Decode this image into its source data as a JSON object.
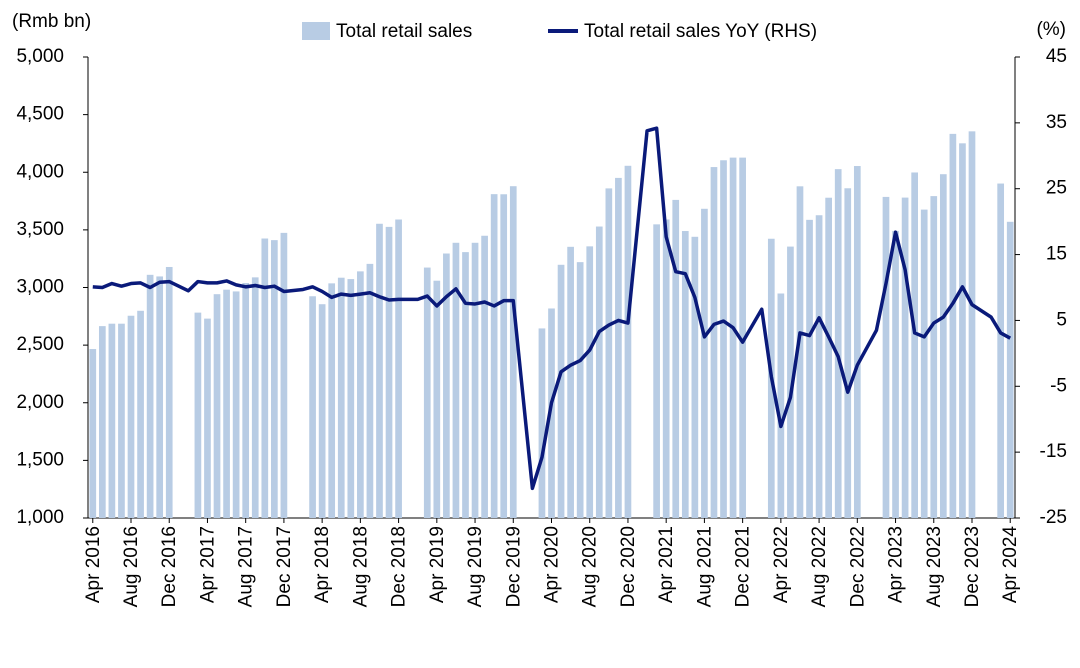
{
  "chart_data": {
    "type": "bar_line",
    "y_label": "(Rmb bn)",
    "y2_label": "(%)",
    "ylim": [
      1000,
      5000
    ],
    "yticks": [
      {
        "value": 1000,
        "label": "1,000"
      },
      {
        "value": 1500,
        "label": "1,500"
      },
      {
        "value": 2000,
        "label": "2,000"
      },
      {
        "value": 2500,
        "label": "2,500"
      },
      {
        "value": 3000,
        "label": "3,000"
      },
      {
        "value": 3500,
        "label": "3,500"
      },
      {
        "value": 4000,
        "label": "4,000"
      },
      {
        "value": 4500,
        "label": "4,500"
      },
      {
        "value": 5000,
        "label": "5,000"
      }
    ],
    "y2lim": [
      -25,
      45
    ],
    "y2ticks": [
      -25,
      -15,
      -5,
      5,
      15,
      25,
      35,
      45
    ],
    "negative_tick_color": "#e00000",
    "xticks": [
      "Apr 2016",
      "Aug 2016",
      "Dec 2016",
      "Apr 2017",
      "Aug 2017",
      "Dec 2017",
      "Apr 2018",
      "Aug 2018",
      "Dec 2018",
      "Apr 2019",
      "Aug 2019",
      "Dec 2019",
      "Apr 2020",
      "Aug 2020",
      "Dec 2020",
      "Apr 2021",
      "Aug 2021",
      "Dec 2021",
      "Apr 2022",
      "Aug 2022",
      "Dec 2022",
      "Apr 2023",
      "Aug 2023",
      "Dec 2023",
      "Apr 2024"
    ],
    "series": [
      {
        "name": "Total retail sales",
        "type": "bar",
        "color": "#b8cce4",
        "x": [
          "Apr 2016",
          "May 2016",
          "Jun 2016",
          "Jul 2016",
          "Aug 2016",
          "Sep 2016",
          "Oct 2016",
          "Nov 2016",
          "Dec 2016",
          "Mar 2017",
          "Apr 2017",
          "May 2017",
          "Jun 2017",
          "Jul 2017",
          "Aug 2017",
          "Sep 2017",
          "Oct 2017",
          "Nov 2017",
          "Dec 2017",
          "Mar 2018",
          "Apr 2018",
          "May 2018",
          "Jun 2018",
          "Jul 2018",
          "Aug 2018",
          "Sep 2018",
          "Oct 2018",
          "Nov 2018",
          "Dec 2018",
          "Mar 2019",
          "Apr 2019",
          "May 2019",
          "Jun 2019",
          "Jul 2019",
          "Aug 2019",
          "Sep 2019",
          "Oct 2019",
          "Nov 2019",
          "Dec 2019",
          "Mar 2020",
          "Apr 2020",
          "May 2020",
          "Jun 2020",
          "Jul 2020",
          "Aug 2020",
          "Sep 2020",
          "Oct 2020",
          "Nov 2020",
          "Dec 2020",
          "Mar 2021",
          "Apr 2021",
          "May 2021",
          "Jun 2021",
          "Jul 2021",
          "Aug 2021",
          "Sep 2021",
          "Oct 2021",
          "Nov 2021",
          "Dec 2021",
          "Mar 2022",
          "Apr 2022",
          "May 2022",
          "Jun 2022",
          "Jul 2022",
          "Aug 2022",
          "Sep 2022",
          "Oct 2022",
          "Nov 2022",
          "Dec 2022",
          "Mar 2023",
          "Apr 2023",
          "May 2023",
          "Jun 2023",
          "Jul 2023",
          "Aug 2023",
          "Sep 2023",
          "Oct 2023",
          "Nov 2023",
          "Dec 2023",
          "Mar 2024",
          "Apr 2024"
        ],
        "values": [
          2466,
          2665,
          2686,
          2686,
          2755,
          2798,
          3110,
          3096,
          3178,
          2782,
          2730,
          2942,
          2981,
          2966,
          3039,
          3088,
          3425,
          3411,
          3474,
          2924,
          2855,
          3036,
          3085,
          3073,
          3140,
          3205,
          3553,
          3526,
          3590,
          3173,
          3059,
          3295,
          3388,
          3307,
          3388,
          3449,
          3810,
          3809,
          3879,
          2645,
          2818,
          3197,
          3353,
          3220,
          3357,
          3529,
          3860,
          3951,
          4056,
          3548,
          3590,
          3760,
          3490,
          3440,
          3683,
          4045,
          4104,
          4127,
          4127,
          3423,
          2948,
          3355,
          3878,
          3587,
          3627,
          3779,
          4027,
          3861,
          4054,
          3786,
          3491,
          3780,
          3998,
          3676,
          3793,
          3983,
          4333,
          4251,
          4355,
          3902,
          3570
        ]
      },
      {
        "name": "Total retail sales YoY (RHS)",
        "type": "line",
        "axis": "y2",
        "color": "#0a1a7a",
        "x": [
          "Apr 2016",
          "May 2016",
          "Jun 2016",
          "Jul 2016",
          "Aug 2016",
          "Sep 2016",
          "Oct 2016",
          "Nov 2016",
          "Dec 2016",
          "Feb 2017",
          "Mar 2017",
          "Apr 2017",
          "May 2017",
          "Jun 2017",
          "Jul 2017",
          "Aug 2017",
          "Sep 2017",
          "Oct 2017",
          "Nov 2017",
          "Dec 2017",
          "Feb 2018",
          "Mar 2018",
          "Apr 2018",
          "May 2018",
          "Jun 2018",
          "Jul 2018",
          "Aug 2018",
          "Sep 2018",
          "Oct 2018",
          "Nov 2018",
          "Dec 2018",
          "Feb 2019",
          "Mar 2019",
          "Apr 2019",
          "May 2019",
          "Jun 2019",
          "Jul 2019",
          "Aug 2019",
          "Sep 2019",
          "Oct 2019",
          "Nov 2019",
          "Dec 2019",
          "Feb 2020",
          "Mar 2020",
          "Apr 2020",
          "May 2020",
          "Jun 2020",
          "Jul 2020",
          "Aug 2020",
          "Sep 2020",
          "Oct 2020",
          "Nov 2020",
          "Dec 2020",
          "Feb 2021",
          "Mar 2021",
          "Apr 2021",
          "May 2021",
          "Jun 2021",
          "Jul 2021",
          "Aug 2021",
          "Sep 2021",
          "Oct 2021",
          "Nov 2021",
          "Dec 2021",
          "Feb 2022",
          "Mar 2022",
          "Apr 2022",
          "May 2022",
          "Jun 2022",
          "Jul 2022",
          "Aug 2022",
          "Sep 2022",
          "Oct 2022",
          "Nov 2022",
          "Dec 2022",
          "Feb 2023",
          "Mar 2023",
          "Apr 2023",
          "May 2023",
          "Jun 2023",
          "Jul 2023",
          "Aug 2023",
          "Sep 2023",
          "Oct 2023",
          "Nov 2023",
          "Dec 2023",
          "Feb 2024",
          "Mar 2024",
          "Apr 2024"
        ],
        "values": [
          10.1,
          10.0,
          10.6,
          10.2,
          10.6,
          10.7,
          10.0,
          10.8,
          10.9,
          9.5,
          10.9,
          10.7,
          10.7,
          11.0,
          10.4,
          10.1,
          10.3,
          10.0,
          10.2,
          9.4,
          9.7,
          10.1,
          9.4,
          8.5,
          9.0,
          8.8,
          9.0,
          9.2,
          8.6,
          8.1,
          8.2,
          8.2,
          8.7,
          7.2,
          8.6,
          9.8,
          7.6,
          7.5,
          7.8,
          7.2,
          8.0,
          8.0,
          -20.5,
          -15.8,
          -7.5,
          -2.8,
          -1.8,
          -1.1,
          0.5,
          3.3,
          4.3,
          5.0,
          4.6,
          33.8,
          34.2,
          17.7,
          12.4,
          12.1,
          8.5,
          2.5,
          4.4,
          4.9,
          3.9,
          1.7,
          6.7,
          -3.5,
          -11.1,
          -6.7,
          3.1,
          2.7,
          5.4,
          2.5,
          -0.5,
          -5.9,
          -1.8,
          3.5,
          10.6,
          18.4,
          12.7,
          3.1,
          2.5,
          4.6,
          5.5,
          7.6,
          10.1,
          7.4,
          5.5,
          3.1,
          2.3
        ]
      }
    ]
  }
}
